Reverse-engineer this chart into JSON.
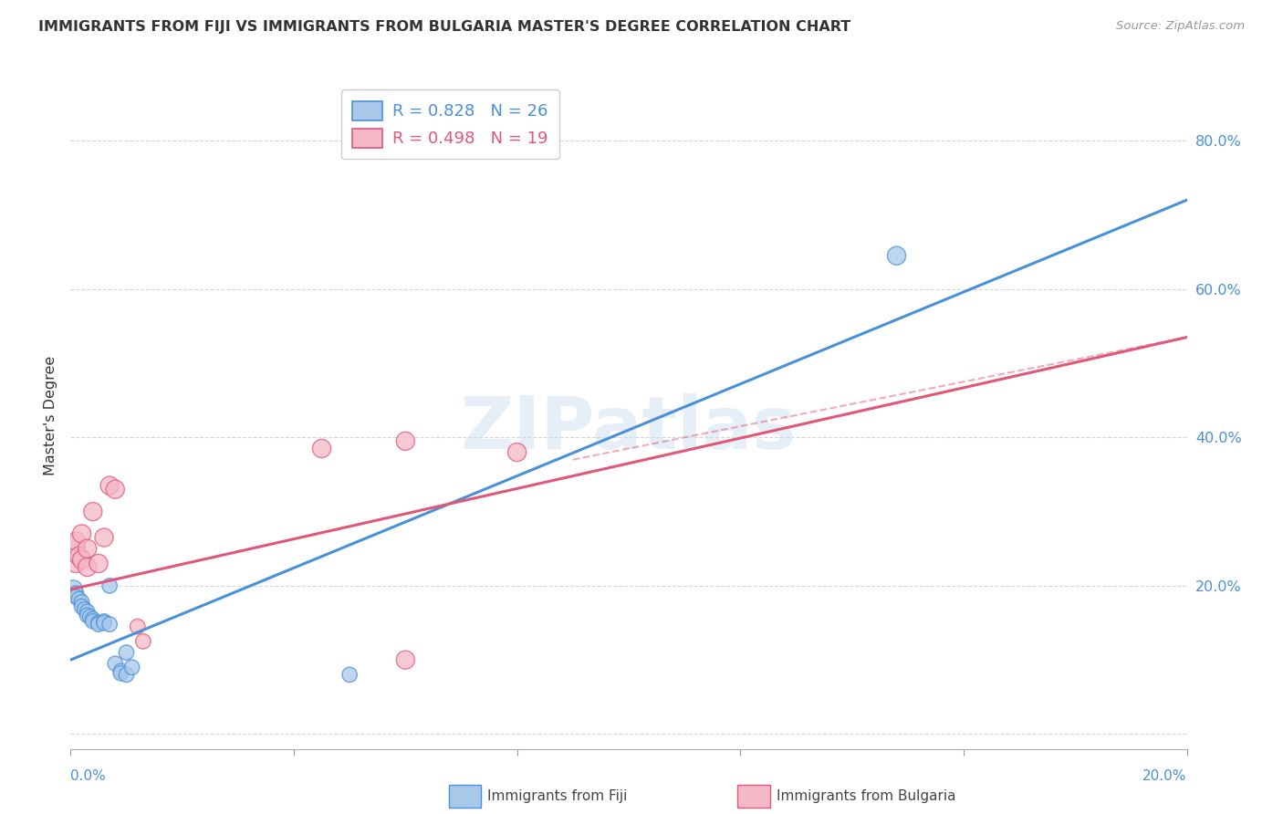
{
  "title": "IMMIGRANTS FROM FIJI VS IMMIGRANTS FROM BULGARIA MASTER'S DEGREE CORRELATION CHART",
  "source": "Source: ZipAtlas.com",
  "ylabel": "Master's Degree",
  "xlim": [
    0.0,
    0.2
  ],
  "ylim": [
    -0.02,
    0.88
  ],
  "yticks": [
    0.0,
    0.2,
    0.4,
    0.6,
    0.8
  ],
  "ytick_labels": [
    "",
    "20.0%",
    "40.0%",
    "60.0%",
    "80.0%"
  ],
  "fiji_color": "#a8c8ea",
  "fiji_line_color": "#4a90d9",
  "bulgaria_color": "#f4b8c8",
  "bulgaria_line_color": "#e05878",
  "fiji_R": 0.828,
  "fiji_N": 26,
  "bulgaria_R": 0.498,
  "bulgaria_N": 19,
  "watermark": "ZIPatlas",
  "fiji_points": [
    [
      0.0005,
      0.195,
      1.5
    ],
    [
      0.001,
      0.19,
      1.0
    ],
    [
      0.001,
      0.185,
      1.0
    ],
    [
      0.0015,
      0.182,
      1.0
    ],
    [
      0.002,
      0.178,
      1.0
    ],
    [
      0.002,
      0.172,
      1.0
    ],
    [
      0.0025,
      0.168,
      1.0
    ],
    [
      0.003,
      0.165,
      1.0
    ],
    [
      0.003,
      0.16,
      1.0
    ],
    [
      0.0035,
      0.158,
      1.0
    ],
    [
      0.004,
      0.155,
      1.0
    ],
    [
      0.004,
      0.152,
      1.0
    ],
    [
      0.005,
      0.15,
      1.0
    ],
    [
      0.005,
      0.148,
      1.0
    ],
    [
      0.006,
      0.152,
      1.0
    ],
    [
      0.006,
      0.15,
      1.0
    ],
    [
      0.007,
      0.148,
      1.0
    ],
    [
      0.007,
      0.2,
      1.0
    ],
    [
      0.008,
      0.095,
      1.0
    ],
    [
      0.009,
      0.085,
      1.0
    ],
    [
      0.009,
      0.082,
      1.0
    ],
    [
      0.01,
      0.08,
      1.0
    ],
    [
      0.01,
      0.11,
      1.0
    ],
    [
      0.011,
      0.09,
      1.0
    ],
    [
      0.05,
      0.08,
      1.0
    ],
    [
      0.148,
      0.645,
      1.5
    ]
  ],
  "bulgaria_points": [
    [
      0.0003,
      0.25,
      3.0
    ],
    [
      0.001,
      0.23,
      1.5
    ],
    [
      0.001,
      0.26,
      1.5
    ],
    [
      0.0015,
      0.24,
      1.5
    ],
    [
      0.002,
      0.27,
      1.5
    ],
    [
      0.002,
      0.235,
      1.5
    ],
    [
      0.003,
      0.25,
      1.5
    ],
    [
      0.003,
      0.225,
      1.5
    ],
    [
      0.004,
      0.3,
      1.5
    ],
    [
      0.005,
      0.23,
      1.5
    ],
    [
      0.006,
      0.265,
      1.5
    ],
    [
      0.007,
      0.335,
      1.5
    ],
    [
      0.008,
      0.33,
      1.5
    ],
    [
      0.012,
      0.145,
      1.0
    ],
    [
      0.013,
      0.125,
      1.0
    ],
    [
      0.045,
      0.385,
      1.5
    ],
    [
      0.06,
      0.395,
      1.5
    ],
    [
      0.08,
      0.38,
      1.5
    ],
    [
      0.06,
      0.1,
      1.5
    ]
  ],
  "fiji_line_manual": [
    0.0,
    0.1,
    0.2,
    0.72
  ],
  "bulgaria_line_manual": [
    0.0,
    0.195,
    0.2,
    0.535
  ],
  "bulgaria_dashed_manual": [
    0.09,
    0.37,
    0.2,
    0.535
  ]
}
